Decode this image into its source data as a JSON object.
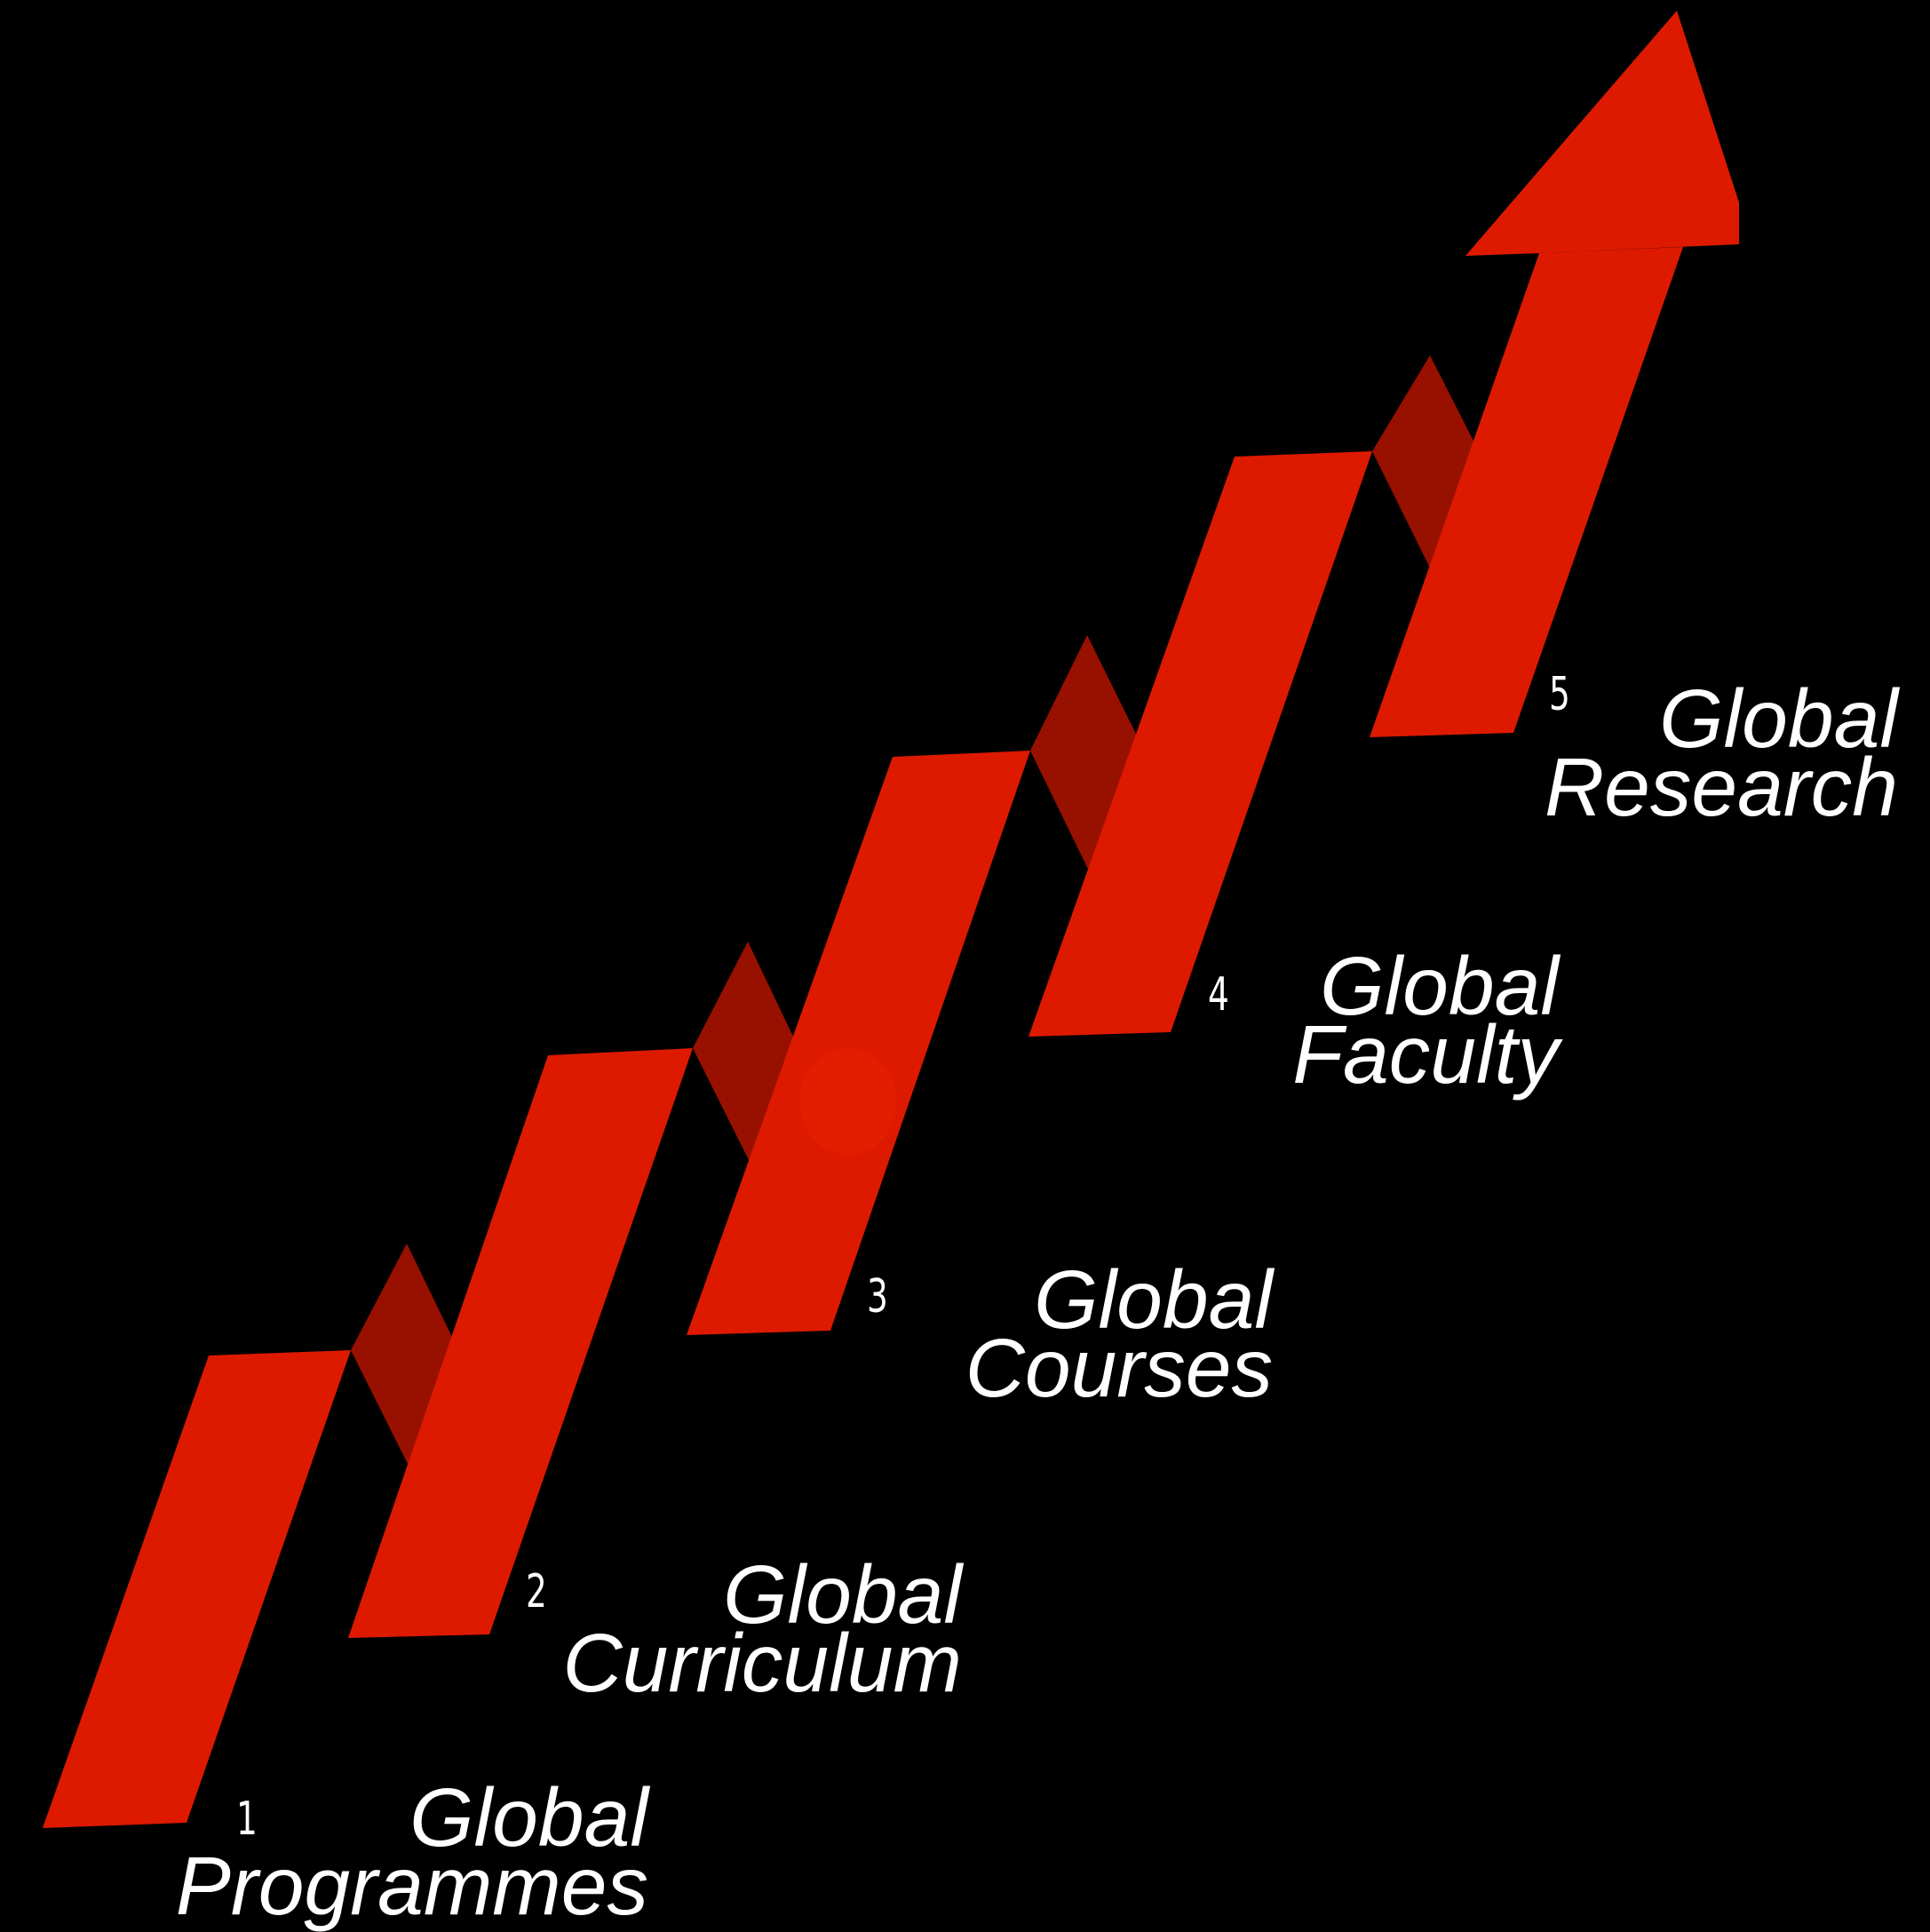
{
  "colors": {
    "background": "#000000",
    "arrow_face": "#dd1a00",
    "arrow_fold": "#981000",
    "text": "#ffffff"
  },
  "steps": [
    {
      "number": "1",
      "line1": "Global",
      "line2": "Programmes"
    },
    {
      "number": "2",
      "line1": "Global",
      "line2": "Curriculum"
    },
    {
      "number": "3",
      "line1": "Global",
      "line2": "Courses"
    },
    {
      "number": "4",
      "line1": "Global",
      "line2": "Faculty"
    },
    {
      "number": "5",
      "line1": "Global",
      "line2": "Research"
    }
  ]
}
